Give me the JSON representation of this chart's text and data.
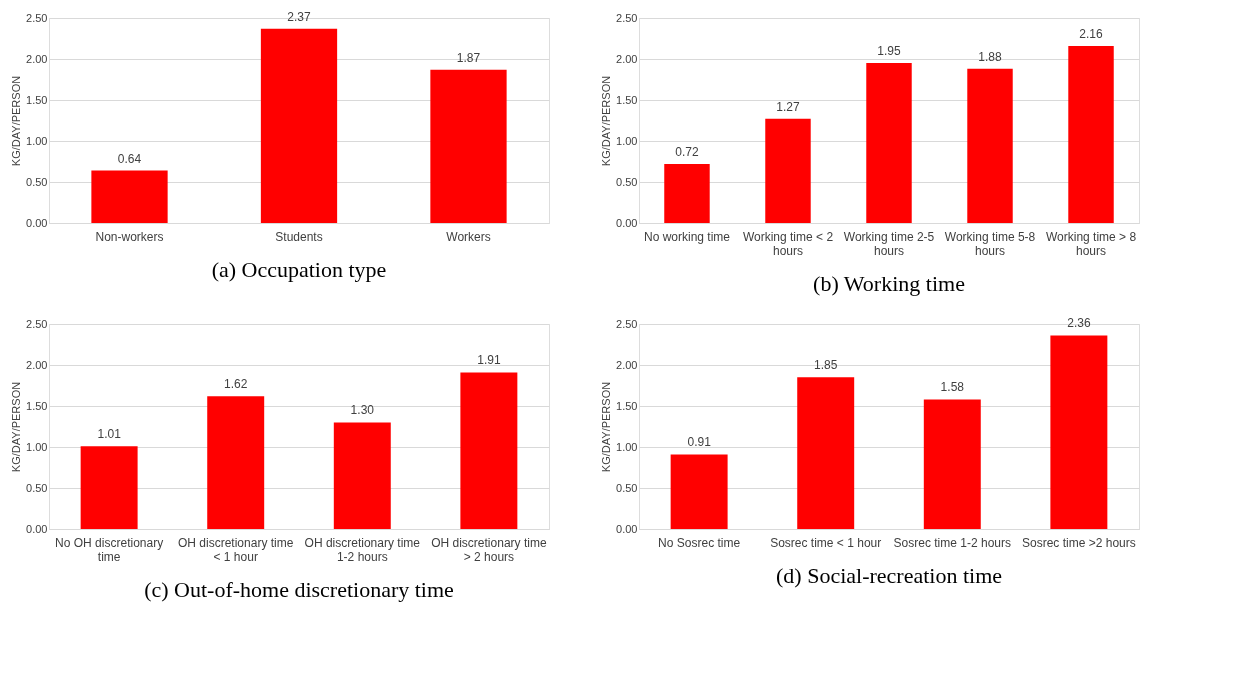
{
  "chart_data": [
    {
      "type": "bar",
      "title": "(a)  Occupation type",
      "ylabel": "KG/DAY/PERSON",
      "categories": [
        "Non-workers",
        "Students",
        "Workers"
      ],
      "values": [
        0.64,
        2.37,
        1.87
      ],
      "value_labels": [
        "0.64",
        "2.37",
        "1.87"
      ],
      "color": "#ff0000",
      "ylim": [
        0,
        2.5
      ],
      "yticks": [
        {
          "value": 0,
          "label": "0.00"
        },
        {
          "value": 0.5,
          "label": "0.50"
        },
        {
          "value": 1,
          "label": "1.00"
        },
        {
          "value": 1.5,
          "label": "1.50"
        },
        {
          "value": 2,
          "label": "2.00"
        },
        {
          "value": 2.5,
          "label": "2.50"
        }
      ],
      "grid": "y"
    },
    {
      "type": "bar",
      "title": "(b)  Working time",
      "ylabel": "KG/DAY/PERSON",
      "categories": [
        "No working time",
        "Working time < 2 hours",
        "Working time 2-5 hours",
        "Working time 5-8 hours",
        "Working time > 8 hours"
      ],
      "values": [
        0.72,
        1.27,
        1.95,
        1.88,
        2.16
      ],
      "value_labels": [
        "0.72",
        "1.27",
        "1.95",
        "1.88",
        "2.16"
      ],
      "color": "#ff0000",
      "ylim": [
        0,
        2.5
      ],
      "yticks": [
        {
          "value": 0,
          "label": "0.00"
        },
        {
          "value": 0.5,
          "label": "0.50"
        },
        {
          "value": 1,
          "label": "1.00"
        },
        {
          "value": 1.5,
          "label": "1.50"
        },
        {
          "value": 2,
          "label": "2.00"
        },
        {
          "value": 2.5,
          "label": "2.50"
        }
      ],
      "grid": "y"
    },
    {
      "type": "bar",
      "title": "(c) Out-of-home discretionary time",
      "ylabel": "KG/DAY/PERSON",
      "categories": [
        "No OH discretionary time",
        "OH discretionary time < 1 hour",
        "OH discretionary time 1-2 hours",
        "OH discretionary time > 2 hours"
      ],
      "values": [
        1.01,
        1.62,
        1.3,
        1.91
      ],
      "value_labels": [
        "1.01",
        "1.62",
        "1.30",
        "1.91"
      ],
      "color": "#ff0000",
      "ylim": [
        0,
        2.5
      ],
      "yticks": [
        {
          "value": 0,
          "label": "0.00"
        },
        {
          "value": 0.5,
          "label": "0.50"
        },
        {
          "value": 1,
          "label": "1.00"
        },
        {
          "value": 1.5,
          "label": "1.50"
        },
        {
          "value": 2,
          "label": "2.00"
        },
        {
          "value": 2.5,
          "label": "2.50"
        }
      ],
      "grid": "y"
    },
    {
      "type": "bar",
      "title": "(d)  Social-recreation time",
      "ylabel": "KG/DAY/PERSON",
      "categories": [
        "No Sosrec time",
        "Sosrec time < 1 hour",
        "Sosrec time 1-2 hours",
        "Sosrec time >2 hours"
      ],
      "values": [
        0.91,
        1.85,
        1.58,
        2.36
      ],
      "value_labels": [
        "0.91",
        "1.85",
        "1.58",
        "2.36"
      ],
      "color": "#ff0000",
      "ylim": [
        0,
        2.5
      ],
      "yticks": [
        {
          "value": 0,
          "label": "0.00"
        },
        {
          "value": 0.5,
          "label": "0.50"
        },
        {
          "value": 1,
          "label": "1.00"
        },
        {
          "value": 1.5,
          "label": "1.50"
        },
        {
          "value": 2,
          "label": "2.00"
        },
        {
          "value": 2.5,
          "label": "2.50"
        }
      ],
      "grid": "y"
    }
  ]
}
